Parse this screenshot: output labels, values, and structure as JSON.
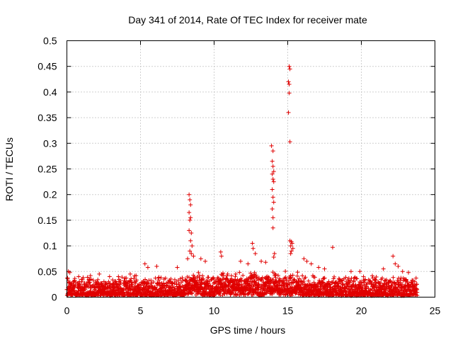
{
  "chart_data": {
    "type": "scatter",
    "title": "Day 341 of 2014, Rate Of TEC Index for receiver mate",
    "xlabel": "GPS time / hours",
    "ylabel": "ROTI / TECUs",
    "xlim": [
      0,
      25
    ],
    "ylim": [
      0,
      0.5
    ],
    "x_ticks": [
      "0",
      "5",
      "10",
      "15",
      "20",
      "25"
    ],
    "y_ticks": [
      "0",
      "0.05",
      "0.1",
      "0.15",
      "0.2",
      "0.25",
      "0.3",
      "0.35",
      "0.4",
      "0.45",
      "0.5"
    ],
    "grid": true,
    "marker": "+",
    "marker_color": "#e00000",
    "series": [
      {
        "name": "ROTI",
        "description": "dense baseline of points between roughly 0 and 0.06 TECU/s from 0 to 23.8 h, with spikes near 8.4 h, 14 h and 15.1 h",
        "baseline": {
          "x_start": 0.0,
          "x_end": 23.8,
          "y_min": 0.003,
          "y_max_typical": 0.04
        },
        "points": [
          [
            8.3,
            0.2
          ],
          [
            8.35,
            0.19
          ],
          [
            8.4,
            0.18
          ],
          [
            8.3,
            0.165
          ],
          [
            8.4,
            0.155
          ],
          [
            8.35,
            0.15
          ],
          [
            8.3,
            0.13
          ],
          [
            8.45,
            0.125
          ],
          [
            8.4,
            0.11
          ],
          [
            8.5,
            0.1
          ],
          [
            8.35,
            0.09
          ],
          [
            8.45,
            0.085
          ],
          [
            8.6,
            0.08
          ],
          [
            8.2,
            0.075
          ],
          [
            13.9,
            0.295
          ],
          [
            14.0,
            0.285
          ],
          [
            13.95,
            0.265
          ],
          [
            14.0,
            0.255
          ],
          [
            14.05,
            0.245
          ],
          [
            13.95,
            0.24
          ],
          [
            14.0,
            0.23
          ],
          [
            14.05,
            0.225
          ],
          [
            13.95,
            0.21
          ],
          [
            14.0,
            0.195
          ],
          [
            14.05,
            0.185
          ],
          [
            13.95,
            0.172
          ],
          [
            14.0,
            0.155
          ],
          [
            14.0,
            0.135
          ],
          [
            14.1,
            0.085
          ],
          [
            14.05,
            0.078
          ],
          [
            15.1,
            0.45
          ],
          [
            15.15,
            0.445
          ],
          [
            15.05,
            0.42
          ],
          [
            15.1,
            0.415
          ],
          [
            15.1,
            0.398
          ],
          [
            15.05,
            0.36
          ],
          [
            15.15,
            0.303
          ],
          [
            15.15,
            0.11
          ],
          [
            15.25,
            0.108
          ],
          [
            15.3,
            0.105
          ],
          [
            15.2,
            0.1
          ],
          [
            15.35,
            0.095
          ],
          [
            15.25,
            0.09
          ],
          [
            15.2,
            0.085
          ],
          [
            10.45,
            0.088
          ],
          [
            10.5,
            0.08
          ],
          [
            12.6,
            0.105
          ],
          [
            12.65,
            0.095
          ],
          [
            12.8,
            0.085
          ],
          [
            5.3,
            0.065
          ],
          [
            5.5,
            0.058
          ],
          [
            6.1,
            0.06
          ],
          [
            7.5,
            0.058
          ],
          [
            9.1,
            0.075
          ],
          [
            9.4,
            0.07
          ],
          [
            11.8,
            0.07
          ],
          [
            12.3,
            0.065
          ],
          [
            13.2,
            0.07
          ],
          [
            13.5,
            0.068
          ],
          [
            16.1,
            0.075
          ],
          [
            16.3,
            0.07
          ],
          [
            16.6,
            0.065
          ],
          [
            17.1,
            0.058
          ],
          [
            17.5,
            0.055
          ],
          [
            18.05,
            0.097
          ],
          [
            19.3,
            0.05
          ],
          [
            19.9,
            0.05
          ],
          [
            21.5,
            0.055
          ],
          [
            22.15,
            0.08
          ],
          [
            22.3,
            0.065
          ],
          [
            22.5,
            0.06
          ],
          [
            22.8,
            0.05
          ],
          [
            23.2,
            0.048
          ],
          [
            0.1,
            0.05
          ],
          [
            0.2,
            0.048
          ],
          [
            0.8,
            0.04
          ],
          [
            1.6,
            0.042
          ],
          [
            2.2,
            0.045
          ],
          [
            2.9,
            0.04
          ],
          [
            3.5,
            0.04
          ],
          [
            4.3,
            0.045
          ],
          [
            4.7,
            0.042
          ],
          [
            6.6,
            0.035
          ]
        ]
      }
    ]
  }
}
